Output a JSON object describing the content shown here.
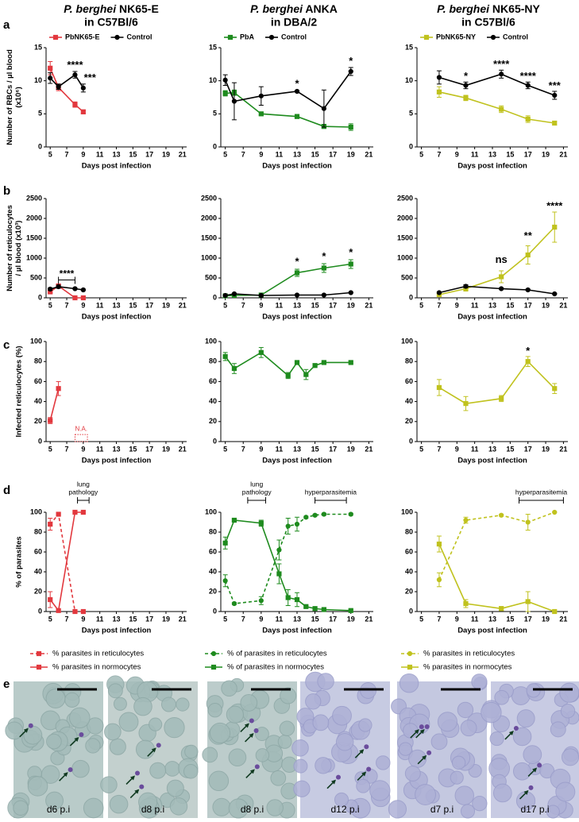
{
  "columns": [
    {
      "species": "P. berghei",
      "strain": " NK65-E",
      "host": "in C57Bl/6"
    },
    {
      "species": "P. berghei",
      "strain": " ANKA",
      "host": "in DBA/2"
    },
    {
      "species": "P. berghei",
      "strain": " NK65-NY",
      "host": "in C57Bl/6"
    }
  ],
  "panels": [
    "a",
    "b",
    "c",
    "d",
    "e"
  ],
  "micrographs": [
    "d6 p.i",
    "d8 p.i",
    "d8 p.i",
    "d12 p.i",
    "d7 p.i",
    "d17 p.i"
  ],
  "chart_data": [
    {
      "type": "line",
      "ylabel": [
        "Number of RBCs / µl blood",
        "(x10⁶)"
      ],
      "xlabel": "Days post infection",
      "xlim": [
        4.5,
        21.5
      ],
      "xticks": [
        5,
        7,
        9,
        11,
        13,
        15,
        17,
        19,
        21
      ],
      "ylim": [
        0,
        15
      ],
      "yticks": [
        0,
        5,
        10,
        15
      ],
      "legend": "top",
      "series": [
        {
          "name": "PbNK65-E",
          "color": "#e2383e",
          "marker": "square",
          "x": [
            5,
            6,
            8,
            9
          ],
          "values": [
            11.9,
            9.0,
            6.4,
            5.3
          ],
          "errors": [
            1.0,
            0.5,
            0.4,
            0.3
          ]
        },
        {
          "name": "Control",
          "color": "#000000",
          "marker": "circle",
          "x": [
            5,
            6,
            8,
            9
          ],
          "values": [
            10.4,
            9.1,
            10.9,
            8.9
          ],
          "errors": [
            0.8,
            0.4,
            0.5,
            0.6
          ]
        }
      ],
      "annotations": [
        {
          "text": "****",
          "x": 8,
          "y": 12.3
        },
        {
          "text": "***",
          "x": 9.8,
          "y": 10.4
        }
      ]
    },
    {
      "type": "line",
      "xlabel": "Days post infection",
      "xlim": [
        4.5,
        21.5
      ],
      "xticks": [
        5,
        7,
        9,
        11,
        13,
        15,
        17,
        19,
        21
      ],
      "ylim": [
        0,
        15
      ],
      "yticks": [
        0,
        5,
        10,
        15
      ],
      "legend": "top",
      "series": [
        {
          "name": "PbA",
          "color": "#1e8b1e",
          "marker": "square",
          "x": [
            5,
            6,
            9,
            13,
            16,
            19
          ],
          "values": [
            8.1,
            8.2,
            5.0,
            4.6,
            3.1,
            3.0
          ],
          "errors": [
            0.4,
            0.4,
            0.2,
            0.3,
            0.3,
            0.5
          ]
        },
        {
          "name": "Control",
          "color": "#000000",
          "marker": "circle",
          "x": [
            5,
            6,
            9,
            13,
            16,
            19
          ],
          "values": [
            10.1,
            6.9,
            7.7,
            8.4,
            5.8,
            11.4
          ],
          "errors": [
            0.8,
            2.8,
            1.4,
            0.1,
            2.8,
            0.6
          ]
        }
      ],
      "annotations": [
        {
          "text": "*",
          "x": 13,
          "y": 9.5
        },
        {
          "text": "*",
          "x": 19,
          "y": 12.9
        }
      ]
    },
    {
      "type": "line",
      "xlabel": "Days post infection",
      "xlim": [
        4.5,
        21.5
      ],
      "xticks": [
        5,
        7,
        9,
        11,
        13,
        15,
        17,
        19,
        21
      ],
      "ylim": [
        0,
        15
      ],
      "yticks": [
        0,
        5,
        10,
        15
      ],
      "legend": "top",
      "series": [
        {
          "name": "PbNK65-NY",
          "color": "#c0c21e",
          "marker": "square",
          "x": [
            7,
            10,
            14,
            17,
            20
          ],
          "values": [
            8.3,
            7.4,
            5.7,
            4.2,
            3.6
          ],
          "errors": [
            0.8,
            0.4,
            0.5,
            0.5,
            0.3
          ]
        },
        {
          "name": "Control",
          "color": "#000000",
          "marker": "circle",
          "x": [
            7,
            10,
            14,
            17,
            20
          ],
          "values": [
            10.5,
            9.3,
            11.0,
            9.3,
            7.8
          ],
          "errors": [
            1.0,
            0.5,
            0.6,
            0.5,
            0.6
          ]
        }
      ],
      "annotations": [
        {
          "text": "*",
          "x": 10,
          "y": 10.6
        },
        {
          "text": "****",
          "x": 14,
          "y": 12.4
        },
        {
          "text": "****",
          "x": 17,
          "y": 10.6
        },
        {
          "text": "***",
          "x": 20,
          "y": 9.2
        }
      ]
    },
    {
      "type": "line",
      "ylabel": [
        "Number of reticulocytes",
        "/ µl blood (x10³)"
      ],
      "xlabel": "Days post infection",
      "xlim": [
        4.5,
        21.5
      ],
      "xticks": [
        5,
        7,
        9,
        11,
        13,
        15,
        17,
        19,
        21
      ],
      "ylim": [
        0,
        2500
      ],
      "yticks": [
        0,
        500,
        1000,
        1500,
        2000,
        2500
      ],
      "series": [
        {
          "color": "#e2383e",
          "marker": "square",
          "x": [
            5,
            6,
            8,
            9
          ],
          "values": [
            150,
            300,
            0,
            0
          ],
          "errors": [
            30,
            40,
            0,
            0
          ]
        },
        {
          "color": "#000000",
          "marker": "circle",
          "x": [
            5,
            6,
            8,
            9
          ],
          "values": [
            220,
            280,
            230,
            200
          ],
          "errors": [
            30,
            40,
            20,
            20
          ]
        }
      ],
      "annotations": [
        {
          "text": "****",
          "x": [
            6,
            8
          ],
          "y": 450,
          "shape": "bracket"
        }
      ]
    },
    {
      "type": "line",
      "xlabel": "Days post infection",
      "xlim": [
        4.5,
        21.5
      ],
      "xticks": [
        5,
        7,
        9,
        11,
        13,
        15,
        17,
        19,
        21
      ],
      "ylim": [
        0,
        2500
      ],
      "yticks": [
        0,
        500,
        1000,
        1500,
        2000,
        2500
      ],
      "series": [
        {
          "color": "#1e8b1e",
          "marker": "square",
          "x": [
            5,
            6,
            9,
            13,
            16,
            19
          ],
          "values": [
            50,
            60,
            70,
            630,
            750,
            850
          ],
          "errors": [
            10,
            10,
            10,
            90,
            110,
            110
          ]
        },
        {
          "color": "#000000",
          "marker": "circle",
          "x": [
            5,
            6,
            9,
            13,
            16,
            19
          ],
          "values": [
            60,
            100,
            60,
            70,
            70,
            130
          ],
          "errors": [
            10,
            10,
            10,
            10,
            10,
            10
          ]
        }
      ],
      "annotations": [
        {
          "text": "*",
          "x": 13,
          "y": 900
        },
        {
          "text": "*",
          "x": 16,
          "y": 1030
        },
        {
          "text": "*",
          "x": 19,
          "y": 1130
        }
      ]
    },
    {
      "type": "line",
      "xlabel": "Days post infection",
      "xlim": [
        4.5,
        21.5
      ],
      "xticks": [
        5,
        7,
        9,
        11,
        13,
        15,
        17,
        19,
        21
      ],
      "ylim": [
        0,
        2500
      ],
      "yticks": [
        0,
        500,
        1000,
        1500,
        2000,
        2500
      ],
      "series": [
        {
          "color": "#c0c21e",
          "marker": "square",
          "x": [
            7,
            10,
            14,
            17,
            20
          ],
          "values": [
            80,
            230,
            530,
            1080,
            1780
          ],
          "errors": [
            20,
            60,
            150,
            230,
            380
          ]
        },
        {
          "color": "#000000",
          "marker": "circle",
          "x": [
            7,
            10,
            14,
            17,
            20
          ],
          "values": [
            130,
            290,
            230,
            200,
            100
          ],
          "errors": [
            20,
            40,
            20,
            20,
            10
          ]
        }
      ],
      "annotations": [
        {
          "text": "ns",
          "x": 14,
          "y": 950
        },
        {
          "text": "**",
          "x": 17,
          "y": 1550
        },
        {
          "text": "****",
          "x": 20,
          "y": 2300
        }
      ]
    },
    {
      "type": "line",
      "ylabel": [
        "Infected reticulocytes (%)"
      ],
      "xlabel": "Days post infection",
      "xlim": [
        4.5,
        21.5
      ],
      "xticks": [
        5,
        7,
        9,
        11,
        13,
        15,
        17,
        19,
        21
      ],
      "ylim": [
        0,
        100
      ],
      "yticks": [
        0,
        20,
        40,
        60,
        80,
        100
      ],
      "series": [
        {
          "color": "#e2383e",
          "marker": "square",
          "x": [
            5,
            6
          ],
          "values": [
            21,
            53
          ],
          "errors": [
            3,
            7
          ]
        }
      ],
      "annotations": [
        {
          "text": "N.A.",
          "x": [
            8,
            9.5
          ],
          "y": 7,
          "shape": "box"
        }
      ]
    },
    {
      "type": "line",
      "xlabel": "Days post infection",
      "xlim": [
        4.5,
        21.5
      ],
      "xticks": [
        5,
        7,
        9,
        11,
        13,
        15,
        17,
        19,
        21
      ],
      "ylim": [
        0,
        100
      ],
      "yticks": [
        0,
        20,
        40,
        60,
        80,
        100
      ],
      "series": [
        {
          "color": "#1e8b1e",
          "marker": "square",
          "x": [
            5,
            6,
            9,
            12,
            13,
            14,
            15,
            16,
            19
          ],
          "values": [
            85,
            73,
            89,
            66,
            79,
            67,
            76,
            79,
            79
          ],
          "errors": [
            4,
            5,
            5,
            3,
            1,
            5,
            1,
            1,
            1
          ]
        }
      ]
    },
    {
      "type": "line",
      "xlabel": "Days post infection",
      "xlim": [
        4.5,
        21.5
      ],
      "xticks": [
        5,
        7,
        9,
        11,
        13,
        15,
        17,
        19,
        21
      ],
      "ylim": [
        0,
        100
      ],
      "yticks": [
        0,
        20,
        40,
        60,
        80,
        100
      ],
      "series": [
        {
          "color": "#c0c21e",
          "marker": "square",
          "x": [
            7,
            10,
            14,
            17,
            20
          ],
          "values": [
            54,
            38,
            43,
            80,
            53
          ],
          "errors": [
            8,
            7,
            3,
            5,
            5
          ]
        }
      ],
      "annotations": [
        {
          "text": "*",
          "x": 17,
          "y": 90
        }
      ]
    },
    {
      "type": "line",
      "ylabel": [
        "% of parasites"
      ],
      "xlabel": "Days post infection",
      "xlim": [
        4.5,
        21.5
      ],
      "xticks": [
        5,
        7,
        9,
        11,
        13,
        15,
        17,
        19,
        21
      ],
      "ylim": [
        0,
        100
      ],
      "yticks": [
        0,
        20,
        40,
        60,
        80,
        100
      ],
      "legend": "bottom",
      "series": [
        {
          "name": "% parasites in reticulocytes",
          "color": "#e2383e",
          "marker": "square",
          "dash": true,
          "x": [
            5,
            6,
            8,
            9
          ],
          "values": [
            88,
            98,
            0,
            0
          ],
          "errors": [
            6,
            1,
            0,
            0
          ]
        },
        {
          "name": "% parasites in normocytes",
          "color": "#e2383e",
          "marker": "square",
          "x": [
            5,
            6,
            8,
            9
          ],
          "values": [
            12,
            1,
            100,
            100
          ],
          "errors": [
            8,
            1,
            0,
            0
          ]
        }
      ],
      "annotations": [
        {
          "text": [
            "lung",
            "pathology"
          ],
          "x": [
            8.3,
            9.7
          ],
          "y": 112,
          "shape": "bracket"
        }
      ]
    },
    {
      "type": "line",
      "xlabel": "Days post infection",
      "xlim": [
        4.5,
        21.5
      ],
      "xticks": [
        5,
        7,
        9,
        11,
        13,
        15,
        17,
        19,
        21
      ],
      "ylim": [
        0,
        100
      ],
      "yticks": [
        0,
        20,
        40,
        60,
        80,
        100
      ],
      "legend": "bottom",
      "series": [
        {
          "name": "% of parasites in reticulocytes",
          "color": "#1e8b1e",
          "marker": "circle",
          "dash": true,
          "x": [
            5,
            6,
            9,
            11,
            12,
            13,
            14,
            15,
            16,
            19
          ],
          "values": [
            31,
            8,
            11,
            62,
            86,
            88,
            95,
            97,
            98,
            98
          ],
          "errors": [
            6,
            1,
            4,
            10,
            8,
            7,
            1,
            1,
            1,
            1
          ]
        },
        {
          "name": "% of parasites in normocytes",
          "color": "#1e8b1e",
          "marker": "square",
          "x": [
            5,
            6,
            9,
            11,
            12,
            13,
            14,
            15,
            16,
            19
          ],
          "values": [
            69,
            92,
            89,
            38,
            14,
            12,
            5,
            3,
            2,
            1
          ],
          "errors": [
            6,
            1,
            3,
            10,
            8,
            7,
            1,
            1,
            1,
            1
          ]
        }
      ],
      "annotations": [
        {
          "text": [
            "lung",
            "pathology"
          ],
          "x": [
            7.5,
            9.5
          ],
          "y": 112,
          "shape": "bracket"
        },
        {
          "text": [
            "hyperparasitemia"
          ],
          "x": [
            15,
            18.5
          ],
          "y": 112,
          "shape": "bracket"
        }
      ]
    },
    {
      "type": "line",
      "xlabel": "Days post infection",
      "xlim": [
        4.5,
        21.5
      ],
      "xticks": [
        5,
        7,
        9,
        11,
        13,
        15,
        17,
        19,
        21
      ],
      "ylim": [
        0,
        100
      ],
      "yticks": [
        0,
        20,
        40,
        60,
        80,
        100
      ],
      "legend": "bottom",
      "series": [
        {
          "name": "% parasites in reticulocytes",
          "color": "#c0c21e",
          "marker": "circle",
          "dash": true,
          "x": [
            7,
            10,
            14,
            17,
            20
          ],
          "values": [
            32,
            92,
            97,
            90,
            100
          ],
          "errors": [
            7,
            3,
            1,
            8,
            0
          ]
        },
        {
          "name": "% parasites in normocytes",
          "color": "#c0c21e",
          "marker": "square",
          "x": [
            7,
            10,
            14,
            17,
            20
          ],
          "values": [
            68,
            8,
            3,
            10,
            0
          ],
          "errors": [
            8,
            4,
            2,
            10,
            0
          ]
        }
      ],
      "annotations": [
        {
          "text": [
            "hyperparasitemia"
          ],
          "x": [
            16,
            21
          ],
          "y": 112,
          "shape": "bracket"
        }
      ]
    }
  ]
}
